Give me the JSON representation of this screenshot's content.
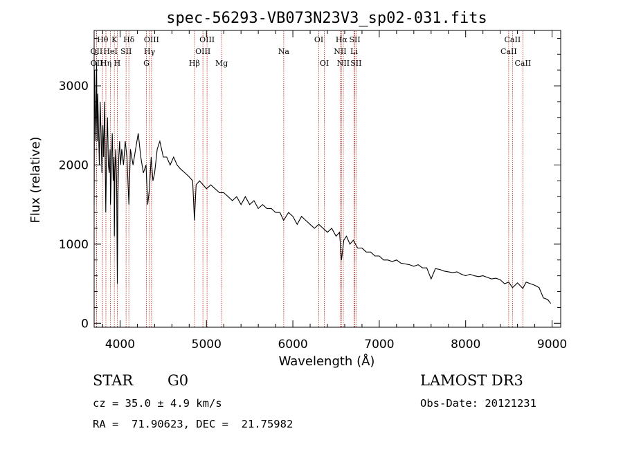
{
  "chart_data": {
    "type": "line",
    "title": "spec-56293-VB073N23V3_sp02-031.fits",
    "xlabel": "Wavelength (Å)",
    "ylabel": "Flux (relative)",
    "xlim": [
      3700,
      9100
    ],
    "ylim": [
      -50,
      3700
    ],
    "xticks": [
      4000,
      5000,
      6000,
      7000,
      8000,
      9000
    ],
    "yticks": [
      0,
      1000,
      2000,
      3000
    ],
    "series": [
      {
        "name": "spectrum",
        "x": [
          3700,
          3705,
          3712,
          3720,
          3728,
          3735,
          3742,
          3750,
          3760,
          3770,
          3780,
          3790,
          3800,
          3810,
          3820,
          3830,
          3835,
          3845,
          3855,
          3865,
          3875,
          3885,
          3889,
          3900,
          3910,
          3920,
          3930,
          3934,
          3940,
          3950,
          3960,
          3968,
          3975,
          3985,
          3995,
          4005,
          4020,
          4040,
          4060,
          4080,
          4102,
          4120,
          4150,
          4180,
          4210,
          4240,
          4270,
          4300,
          4320,
          4340,
          4360,
          4380,
          4400,
          4430,
          4460,
          4500,
          4540,
          4580,
          4620,
          4660,
          4700,
          4750,
          4800,
          4840,
          4861,
          4880,
          4920,
          4960,
          5000,
          5050,
          5100,
          5150,
          5200,
          5250,
          5300,
          5350,
          5400,
          5450,
          5500,
          5550,
          5600,
          5650,
          5700,
          5750,
          5800,
          5850,
          5893,
          5950,
          6000,
          6050,
          6100,
          6150,
          6200,
          6250,
          6300,
          6350,
          6400,
          6450,
          6500,
          6540,
          6563,
          6590,
          6620,
          6660,
          6700,
          6750,
          6800,
          6850,
          6900,
          6950,
          7000,
          7050,
          7100,
          7150,
          7200,
          7250,
          7300,
          7350,
          7400,
          7450,
          7500,
          7550,
          7600,
          7650,
          7700,
          7750,
          7800,
          7850,
          7900,
          7950,
          8000,
          8050,
          8100,
          8150,
          8200,
          8250,
          8300,
          8350,
          8400,
          8450,
          8498,
          8542,
          8600,
          8662,
          8700,
          8750,
          8800,
          8850,
          8900,
          8950,
          8985
        ],
        "y": [
          1500,
          3200,
          2700,
          2300,
          3300,
          2300,
          2900,
          2500,
          2000,
          2800,
          2400,
          1900,
          2500,
          2100,
          2800,
          1900,
          1400,
          2200,
          2600,
          2000,
          1900,
          2200,
          1500,
          2000,
          2400,
          1800,
          2100,
          1100,
          1900,
          2200,
          1800,
          500,
          1600,
          2100,
          2300,
          2000,
          2200,
          2000,
          2300,
          2100,
          1500,
          2200,
          2000,
          2200,
          2400,
          2100,
          1900,
          2000,
          1500,
          1700,
          2100,
          1800,
          1900,
          2200,
          2300,
          2100,
          2100,
          2000,
          2100,
          2000,
          1950,
          1900,
          1850,
          1800,
          1300,
          1750,
          1800,
          1750,
          1700,
          1750,
          1700,
          1650,
          1650,
          1600,
          1550,
          1600,
          1500,
          1600,
          1500,
          1550,
          1450,
          1500,
          1450,
          1450,
          1400,
          1400,
          1300,
          1400,
          1350,
          1250,
          1350,
          1300,
          1250,
          1200,
          1250,
          1200,
          1150,
          1200,
          1100,
          1150,
          800,
          1050,
          1100,
          1000,
          1050,
          950,
          950,
          900,
          900,
          850,
          850,
          800,
          800,
          780,
          800,
          760,
          750,
          740,
          720,
          740,
          700,
          700,
          560,
          690,
          680,
          660,
          650,
          640,
          650,
          620,
          600,
          620,
          600,
          590,
          600,
          580,
          560,
          570,
          550,
          500,
          520,
          450,
          510,
          440,
          520,
          500,
          480,
          450,
          320,
          300,
          250
        ]
      }
    ],
    "emission_lines": [
      {
        "name": "Hθ",
        "wl": 3798,
        "row": 0
      },
      {
        "name": "OII",
        "wl": 3727,
        "row": 1
      },
      {
        "name": "OII",
        "wl": 3729,
        "row": 2
      },
      {
        "name": "Hη",
        "wl": 3836,
        "row": 2
      },
      {
        "name": "HeI",
        "wl": 3889,
        "row": 1
      },
      {
        "name": "K",
        "wl": 3934,
        "row": 0
      },
      {
        "name": "H",
        "wl": 3968,
        "row": 2
      },
      {
        "name": "SII",
        "wl": 4070,
        "row": 1
      },
      {
        "name": "Hδ",
        "wl": 4102,
        "row": 0
      },
      {
        "name": "OIII",
        "wl": 4364,
        "row": 0
      },
      {
        "name": "Hγ",
        "wl": 4341,
        "row": 1
      },
      {
        "name": "G",
        "wl": 4305,
        "row": 2
      },
      {
        "name": "Hβ",
        "wl": 4861,
        "row": 2
      },
      {
        "name": "OIII",
        "wl": 5007,
        "row": 0
      },
      {
        "name": "OIII",
        "wl": 4959,
        "row": 1
      },
      {
        "name": "Mg",
        "wl": 5175,
        "row": 2
      },
      {
        "name": "Na",
        "wl": 5894,
        "row": 1
      },
      {
        "name": "OI",
        "wl": 6300,
        "row": 0
      },
      {
        "name": "OI",
        "wl": 6364,
        "row": 2
      },
      {
        "name": "Hα",
        "wl": 6563,
        "row": 0
      },
      {
        "name": "NII",
        "wl": 6548,
        "row": 1
      },
      {
        "name": "NII",
        "wl": 6584,
        "row": 2
      },
      {
        "name": "SII",
        "wl": 6717,
        "row": 0
      },
      {
        "name": "Li",
        "wl": 6708,
        "row": 1
      },
      {
        "name": "SII",
        "wl": 6731,
        "row": 2
      },
      {
        "name": "CaII",
        "wl": 8542,
        "row": 0
      },
      {
        "name": "CaII",
        "wl": 8498,
        "row": 1
      },
      {
        "name": "CaII",
        "wl": 8662,
        "row": 2
      }
    ]
  },
  "info": {
    "object_class": "STAR",
    "subclass": "G0",
    "survey": "LAMOST DR3",
    "redshift": "cz = 35.0 ± 4.9 km/s",
    "obs_date": "Obs-Date: 20121231",
    "coords": "RA =  71.90623, DEC =  21.75982"
  }
}
